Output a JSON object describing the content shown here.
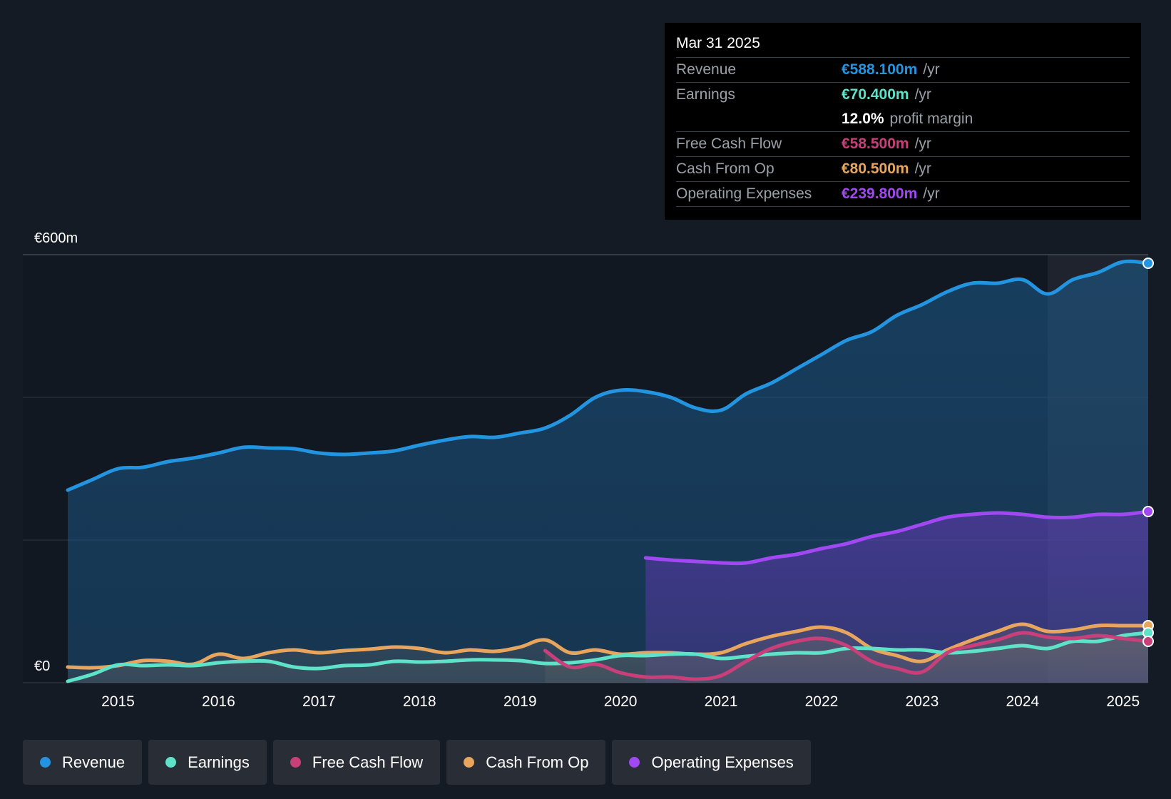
{
  "colors": {
    "revenue": "#2394e0",
    "earnings": "#5ee2c8",
    "fcf": "#c83f7a",
    "cfo": "#e8a55e",
    "opex": "#a148f2"
  },
  "tooltip": {
    "date": "Mar 31 2025",
    "rows": [
      {
        "label": "Revenue",
        "value": "€588.100m",
        "unit": "/yr"
      },
      {
        "label": "Earnings",
        "value": "€70.400m",
        "unit": "/yr"
      },
      {
        "label": "",
        "value": "12.0%",
        "unit": "profit margin"
      },
      {
        "label": "Free Cash Flow",
        "value": "€58.500m",
        "unit": "/yr"
      },
      {
        "label": "Cash From Op",
        "value": "€80.500m",
        "unit": "/yr"
      },
      {
        "label": "Operating Expenses",
        "value": "€239.800m",
        "unit": "/yr"
      }
    ]
  },
  "legend": [
    {
      "label": "Revenue"
    },
    {
      "label": "Earnings"
    },
    {
      "label": "Free Cash Flow"
    },
    {
      "label": "Cash From Op"
    },
    {
      "label": "Operating Expenses"
    }
  ],
  "chart_data": {
    "type": "area",
    "title": "",
    "ylabel_top": "€600m",
    "ylabel_bottom": "€0",
    "ylim": [
      0,
      600
    ],
    "xlim": [
      2014.5,
      2025.25
    ],
    "x_ticks": [
      "2015",
      "2016",
      "2017",
      "2018",
      "2019",
      "2020",
      "2021",
      "2022",
      "2023",
      "2024",
      "2025"
    ],
    "x_tick_values": [
      2015,
      2016,
      2017,
      2018,
      2019,
      2020,
      2021,
      2022,
      2023,
      2024,
      2025
    ],
    "highlight_from": 2024.25,
    "series": [
      {
        "name": "Revenue",
        "key": "revenue",
        "x": [
          2014.5,
          2014.75,
          2015,
          2015.25,
          2015.5,
          2015.75,
          2016,
          2016.25,
          2016.5,
          2016.75,
          2017,
          2017.25,
          2017.5,
          2017.75,
          2018,
          2018.25,
          2018.5,
          2018.75,
          2019,
          2019.25,
          2019.5,
          2019.75,
          2020,
          2020.25,
          2020.5,
          2020.75,
          2021,
          2021.25,
          2021.5,
          2021.75,
          2022,
          2022.25,
          2022.5,
          2022.75,
          2023,
          2023.25,
          2023.5,
          2023.75,
          2024,
          2024.25,
          2024.5,
          2024.75,
          2025,
          2025.25
        ],
        "values": [
          270,
          285,
          300,
          302,
          310,
          315,
          322,
          330,
          329,
          328,
          322,
          320,
          322,
          325,
          333,
          340,
          345,
          344,
          350,
          357,
          375,
          400,
          410,
          408,
          400,
          385,
          382,
          405,
          420,
          440,
          460,
          480,
          492,
          515,
          530,
          548,
          560,
          560,
          565,
          545,
          565,
          575,
          590,
          588
        ]
      },
      {
        "name": "Earnings",
        "key": "earnings",
        "x": [
          2014.5,
          2014.75,
          2015,
          2015.25,
          2015.5,
          2015.75,
          2016,
          2016.25,
          2016.5,
          2016.75,
          2017,
          2017.25,
          2017.5,
          2017.75,
          2018,
          2018.25,
          2018.5,
          2018.75,
          2019,
          2019.25,
          2019.5,
          2019.75,
          2020,
          2020.25,
          2020.5,
          2020.75,
          2021,
          2021.25,
          2021.5,
          2021.75,
          2022,
          2022.25,
          2022.5,
          2022.75,
          2023,
          2023.25,
          2023.5,
          2023.75,
          2024,
          2024.25,
          2024.5,
          2024.75,
          2025,
          2025.25
        ],
        "values": [
          2,
          12,
          25,
          24,
          25,
          24,
          28,
          30,
          30,
          22,
          20,
          24,
          25,
          30,
          29,
          30,
          32,
          32,
          31,
          27,
          28,
          32,
          38,
          38,
          40,
          40,
          34,
          37,
          40,
          42,
          42,
          48,
          48,
          46,
          46,
          42,
          44,
          48,
          52,
          48,
          58,
          58,
          66,
          70
        ]
      },
      {
        "name": "Free Cash Flow",
        "key": "fcf",
        "x": [
          2019.25,
          2019.5,
          2019.75,
          2020,
          2020.25,
          2020.5,
          2020.75,
          2021,
          2021.25,
          2021.5,
          2021.75,
          2022,
          2022.25,
          2022.5,
          2022.75,
          2023,
          2023.25,
          2023.5,
          2023.75,
          2024,
          2024.25,
          2024.5,
          2024.75,
          2025,
          2025.25
        ],
        "values": [
          45,
          22,
          26,
          14,
          8,
          8,
          5,
          10,
          30,
          48,
          58,
          62,
          52,
          30,
          20,
          15,
          42,
          52,
          60,
          70,
          64,
          62,
          66,
          62,
          58
        ]
      },
      {
        "name": "Cash From Op",
        "key": "cfo",
        "x": [
          2014.5,
          2014.75,
          2015,
          2015.25,
          2015.5,
          2015.75,
          2016,
          2016.25,
          2016.5,
          2016.75,
          2017,
          2017.25,
          2017.5,
          2017.75,
          2018,
          2018.25,
          2018.5,
          2018.75,
          2019,
          2019.25,
          2019.5,
          2019.75,
          2020,
          2020.25,
          2020.5,
          2020.75,
          2021,
          2021.25,
          2021.5,
          2021.75,
          2022,
          2022.25,
          2022.5,
          2022.75,
          2023,
          2023.25,
          2023.5,
          2023.75,
          2024,
          2024.25,
          2024.5,
          2024.75,
          2025,
          2025.25
        ],
        "values": [
          22,
          21,
          24,
          31,
          30,
          26,
          40,
          34,
          42,
          46,
          42,
          45,
          47,
          50,
          48,
          42,
          46,
          44,
          50,
          60,
          42,
          46,
          40,
          42,
          42,
          40,
          42,
          55,
          65,
          72,
          78,
          70,
          48,
          38,
          30,
          46,
          60,
          72,
          82,
          72,
          74,
          80,
          80,
          80
        ]
      },
      {
        "name": "Operating Expenses",
        "key": "opex",
        "x": [
          2020.25,
          2020.5,
          2020.75,
          2021,
          2021.25,
          2021.5,
          2021.75,
          2022,
          2022.25,
          2022.5,
          2022.75,
          2023,
          2023.25,
          2023.5,
          2023.75,
          2024,
          2024.25,
          2024.5,
          2024.75,
          2025,
          2025.25
        ],
        "values": [
          175,
          172,
          170,
          168,
          168,
          175,
          180,
          188,
          195,
          205,
          212,
          222,
          232,
          236,
          238,
          236,
          232,
          232,
          236,
          236,
          240
        ]
      }
    ]
  }
}
